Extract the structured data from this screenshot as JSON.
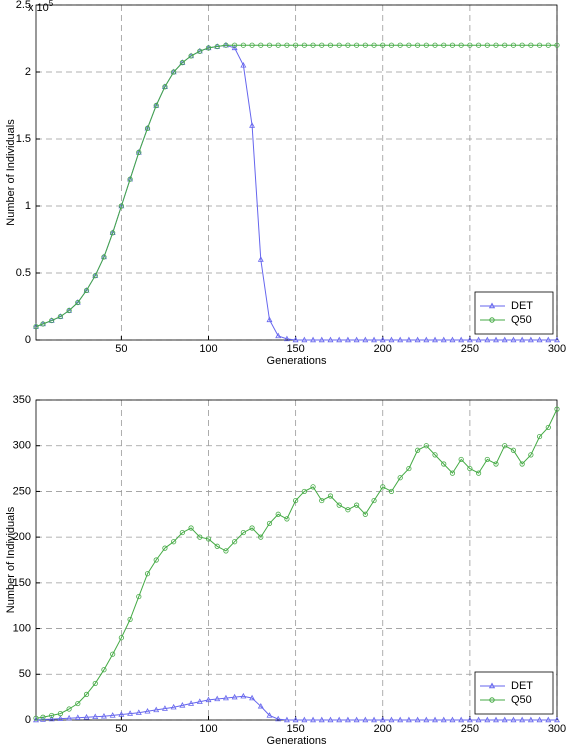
{
  "chart_data": [
    {
      "type": "line",
      "xlabel": "Generations",
      "ylabel": "Number of Individuals",
      "y_multiplier": "x 10",
      "y_multiplier_exp": "5",
      "xlim": [
        1,
        300
      ],
      "xticks": [
        50,
        100,
        150,
        200,
        250,
        300
      ],
      "ylim": [
        0,
        250000
      ],
      "yticks": [
        0,
        {
          "value": 50000,
          "label": "0.5"
        },
        {
          "value": 100000,
          "label": "1"
        },
        {
          "value": 150000,
          "label": "1.5"
        },
        {
          "value": 200000,
          "label": "2"
        },
        {
          "value": 250000,
          "label": "2.5"
        }
      ],
      "grid": true,
      "legend": "lower right",
      "x": [
        1,
        5,
        10,
        15,
        20,
        25,
        30,
        35,
        40,
        45,
        50,
        55,
        60,
        65,
        70,
        75,
        80,
        85,
        90,
        95,
        100,
        105,
        110,
        115,
        120,
        125,
        130,
        135,
        140,
        145,
        150,
        155,
        160,
        165,
        170,
        175,
        180,
        185,
        190,
        195,
        200,
        205,
        210,
        215,
        220,
        225,
        230,
        235,
        240,
        245,
        250,
        255,
        260,
        265,
        270,
        275,
        280,
        285,
        290,
        295,
        300
      ],
      "series": [
        {
          "name": "DET",
          "color": "#6666ee",
          "marker": "triangle",
          "values": [
            10000,
            12000,
            14500,
            17500,
            22000,
            28000,
            37000,
            48000,
            62000,
            80000,
            100000,
            120000,
            140000,
            158000,
            175000,
            189000,
            200000,
            207000,
            212000,
            215500,
            218000,
            219000,
            220000,
            218000,
            205000,
            160000,
            60000,
            15000,
            3000,
            800,
            0,
            0,
            0,
            0,
            0,
            0,
            0,
            0,
            0,
            0,
            0,
            0,
            0,
            0,
            0,
            0,
            0,
            0,
            0,
            0,
            0,
            0,
            0,
            0,
            0,
            0,
            0,
            0,
            0,
            0,
            0
          ]
        },
        {
          "name": "Q50",
          "color": "#44aa44",
          "marker": "circle",
          "values": [
            10000,
            12000,
            14500,
            17500,
            22000,
            28000,
            37000,
            48000,
            62000,
            80000,
            100000,
            120000,
            140000,
            158000,
            175000,
            189000,
            200000,
            207000,
            212000,
            215500,
            218000,
            219000,
            220000,
            220000,
            220000,
            220000,
            220000,
            220000,
            220000,
            220000,
            220000,
            220000,
            220000,
            220000,
            220000,
            220000,
            220000,
            220000,
            220000,
            220000,
            220000,
            220000,
            220000,
            220000,
            220000,
            220000,
            220000,
            220000,
            220000,
            220000,
            220000,
            220000,
            220000,
            220000,
            220000,
            220000,
            220000,
            220000,
            220000,
            220000,
            220000
          ]
        }
      ]
    },
    {
      "type": "line",
      "xlabel": "Generations",
      "ylabel": "Number of Individuals",
      "xlim": [
        1,
        300
      ],
      "xticks": [
        50,
        100,
        150,
        200,
        250,
        300
      ],
      "ylim": [
        0,
        350
      ],
      "yticks": [
        0,
        50,
        100,
        150,
        200,
        250,
        300,
        350
      ],
      "grid": true,
      "legend": "lower right",
      "x": [
        1,
        5,
        10,
        15,
        20,
        25,
        30,
        35,
        40,
        45,
        50,
        55,
        60,
        65,
        70,
        75,
        80,
        85,
        90,
        95,
        100,
        105,
        110,
        115,
        120,
        125,
        130,
        135,
        140,
        145,
        150,
        155,
        160,
        165,
        170,
        175,
        180,
        185,
        190,
        195,
        200,
        205,
        210,
        215,
        220,
        225,
        230,
        235,
        240,
        245,
        250,
        255,
        260,
        265,
        270,
        275,
        280,
        285,
        290,
        295,
        300
      ],
      "series": [
        {
          "name": "DET",
          "color": "#6666ee",
          "marker": "triangle",
          "values": [
            0,
            0.5,
            1,
            1.5,
            2,
            2.5,
            3,
            3.5,
            4,
            5,
            6,
            7,
            8,
            9.5,
            11,
            12.5,
            14,
            16,
            18,
            20,
            22,
            23,
            24,
            25,
            26,
            24,
            15,
            5,
            1,
            0,
            0,
            0,
            0,
            0,
            0,
            0,
            0,
            0,
            0,
            0,
            0,
            0,
            0,
            0,
            0,
            0,
            0,
            0,
            0,
            0,
            0,
            0,
            0,
            0,
            0,
            0,
            0,
            0,
            0,
            0,
            0
          ]
        },
        {
          "name": "Q50",
          "color": "#44aa44",
          "marker": "circle",
          "values": [
            2,
            3,
            5,
            7,
            12,
            18,
            28,
            40,
            55,
            72,
            90,
            110,
            135,
            160,
            175,
            188,
            195,
            205,
            210,
            200,
            198,
            190,
            185,
            195,
            205,
            210,
            200,
            215,
            225,
            220,
            240,
            250,
            255,
            240,
            245,
            235,
            230,
            235,
            225,
            240,
            255,
            250,
            265,
            275,
            295,
            300,
            290,
            280,
            270,
            285,
            275,
            270,
            285,
            280,
            300,
            295,
            280,
            290,
            310,
            320,
            340
          ]
        }
      ]
    }
  ]
}
